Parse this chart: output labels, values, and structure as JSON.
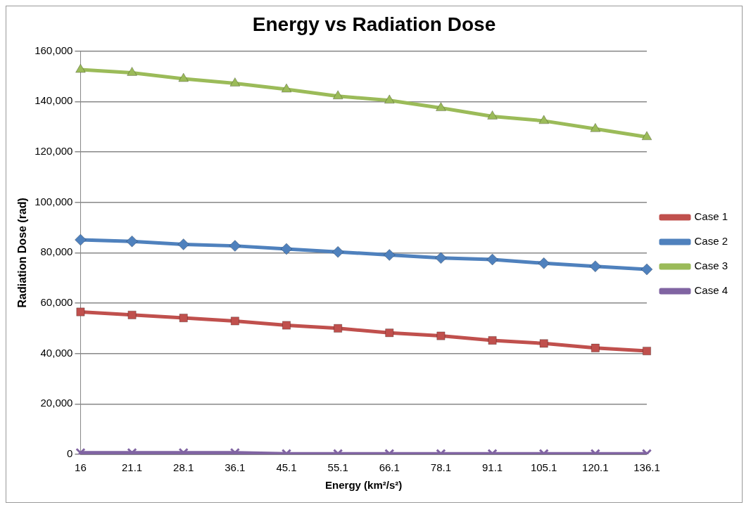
{
  "chart_data": {
    "type": "line",
    "title": "Energy vs Radiation Dose",
    "xlabel": "Energy (km²/s²)",
    "ylabel": "Radiation Dose (rad)",
    "categories": [
      "16",
      "21.1",
      "28.1",
      "36.1",
      "45.1",
      "55.1",
      "66.1",
      "78.1",
      "91.1",
      "105.1",
      "120.1",
      "136.1"
    ],
    "series": [
      {
        "name": "Case 1",
        "color": "#c0504d",
        "marker": "square",
        "values": [
          56500,
          55300,
          54100,
          52900,
          51200,
          50000,
          48200,
          47000,
          45200,
          44000,
          42200,
          41000
        ]
      },
      {
        "name": "Case 2",
        "color": "#4f81bd",
        "marker": "diamond",
        "values": [
          85100,
          84500,
          83300,
          82700,
          81500,
          80300,
          79100,
          77900,
          77300,
          75800,
          74600,
          73400
        ]
      },
      {
        "name": "Case 3",
        "color": "#9bbb59",
        "marker": "triangle",
        "values": [
          152600,
          151400,
          149000,
          147200,
          144800,
          142100,
          140400,
          137400,
          134100,
          132300,
          129100,
          125900
        ]
      },
      {
        "name": "Case 4",
        "color": "#8064a2",
        "marker": "cross",
        "values": [
          600,
          600,
          600,
          600,
          200,
          200,
          200,
          200,
          200,
          200,
          200,
          200
        ]
      }
    ],
    "ylim": [
      0,
      160000
    ],
    "yticks": [
      0,
      {
        "value": 20000,
        "label": "20,000"
      },
      {
        "value": 40000,
        "label": "40,000"
      },
      {
        "value": 60000,
        "label": "60,000"
      },
      {
        "value": 80000,
        "label": "80,000"
      },
      {
        "value": 100000,
        "label": "100,000"
      },
      {
        "value": 120000,
        "label": "120,000"
      },
      {
        "value": 140000,
        "label": "140,000"
      },
      {
        "value": 160000,
        "label": "160,000"
      }
    ],
    "grid": "y",
    "legend": "right",
    "line_style": "solid"
  }
}
